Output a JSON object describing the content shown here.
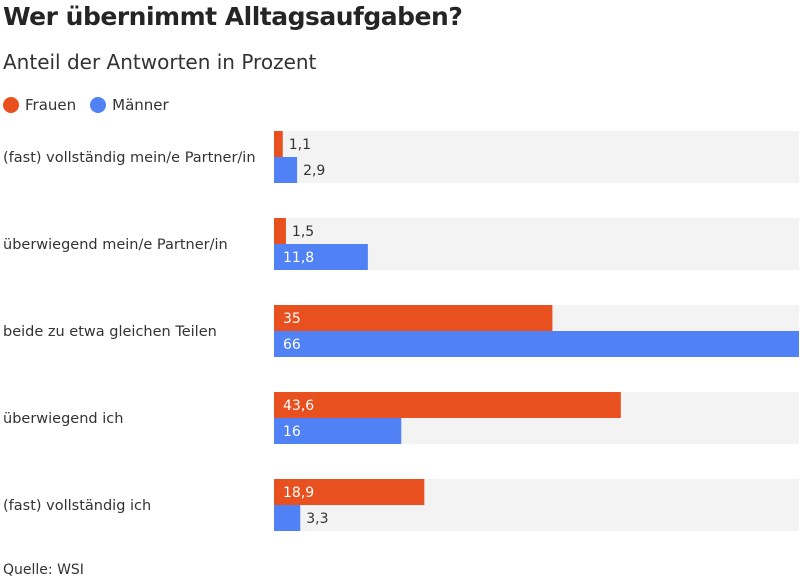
{
  "title": "Wer übernimmt Alltagsaufgaben?",
  "subtitle": "Anteil der Antworten in Prozent",
  "source": "Quelle: WSI",
  "colors": {
    "Frauen": "#e8501f",
    "Männer": "#5082f5",
    "track": "#f3f3f3"
  },
  "chart_data": {
    "type": "bar",
    "orientation": "horizontal",
    "title": "Wer übernimmt Alltagsaufgaben?",
    "subtitle": "Anteil der Antworten in Prozent",
    "legend_position": "top-left",
    "xlim": [
      0,
      66
    ],
    "categories": [
      "(fast) vollständig mein/e Partner/in",
      "überwiegend mein/e Partner/in",
      "beide zu etwa gleichen Teilen",
      "überwiegend ich",
      "(fast) vollständig ich"
    ],
    "series": [
      {
        "name": "Frauen",
        "values": [
          1.1,
          1.5,
          35,
          43.6,
          18.9
        ],
        "labels": [
          "1,1",
          "1,5",
          "35",
          "43,6",
          "18,9"
        ]
      },
      {
        "name": "Männer",
        "values": [
          2.9,
          11.8,
          66,
          16,
          3.3
        ],
        "labels": [
          "2,9",
          "11,8",
          "66",
          "16",
          "3,3"
        ]
      }
    ]
  }
}
